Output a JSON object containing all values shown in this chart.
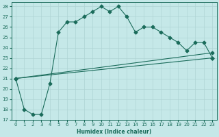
{
  "xlabel": "Humidex (Indice chaleur)",
  "xlim": [
    -0.5,
    23.5
  ],
  "ylim": [
    17,
    28.4
  ],
  "yticks": [
    17,
    18,
    19,
    20,
    21,
    22,
    23,
    24,
    25,
    26,
    27,
    28
  ],
  "xticks": [
    0,
    1,
    2,
    3,
    4,
    5,
    6,
    7,
    8,
    9,
    10,
    11,
    12,
    13,
    14,
    15,
    16,
    17,
    18,
    19,
    20,
    21,
    22,
    23
  ],
  "bg_color": "#c5e8e8",
  "line_color": "#1a6b5a",
  "grid_color": "#afd4d4",
  "line1_x": [
    0,
    1,
    2,
    3,
    4,
    5,
    6,
    7,
    8,
    9,
    10,
    11,
    12,
    13,
    14,
    15,
    16,
    17,
    18,
    19,
    20,
    21,
    22,
    23
  ],
  "line1_y": [
    21,
    18,
    17.5,
    17.5,
    20.5,
    25.5,
    26.5,
    26.5,
    27.0,
    27.5,
    28.0,
    27.5,
    28.0,
    27.0,
    25.5,
    26.0,
    26.0,
    25.5,
    25.0,
    24.5,
    23.7,
    24.5,
    24.5,
    23.0
  ],
  "line2_x": [
    0,
    23
  ],
  "line2_y": [
    21,
    23.5
  ],
  "line3_x": [
    0,
    23
  ],
  "line3_y": [
    21,
    23.0
  ],
  "marker_size": 2.5,
  "linewidth": 0.8,
  "tick_fontsize": 5.0,
  "xlabel_fontsize": 5.5
}
